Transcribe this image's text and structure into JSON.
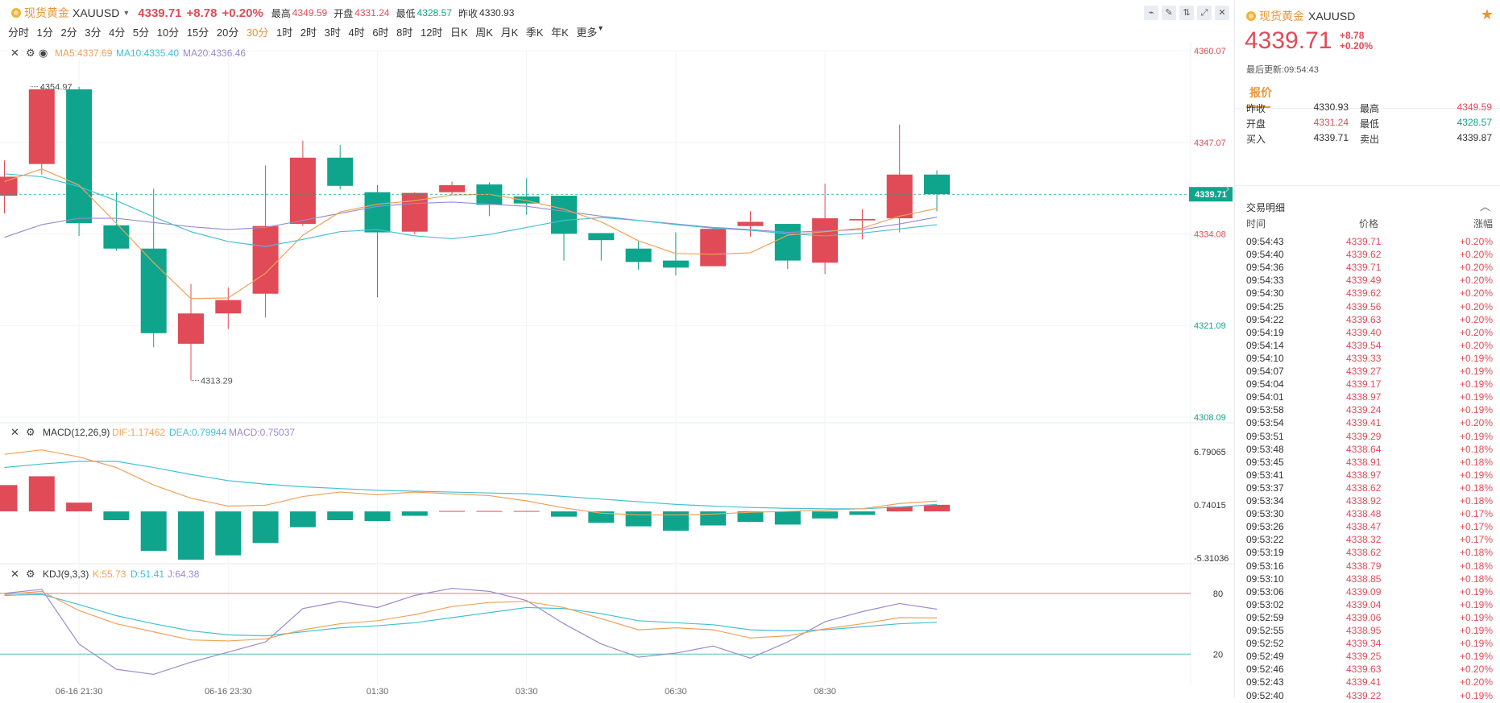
{
  "topbar": {
    "name": "现货黄金",
    "symbol": "XAUUSD",
    "price": "4339.71",
    "change": "+8.78",
    "change_pct": "+0.20%",
    "high_label": "最高",
    "high": "4349.59",
    "open_label": "开盘",
    "open": "4331.24",
    "low_label": "最低",
    "low": "4328.57",
    "prev_label": "昨收",
    "prev": "4330.93",
    "tools": [
      "indicator-icon",
      "draw-icon",
      "compare-icon",
      "fullscreen-icon",
      "close-icon"
    ]
  },
  "periods": [
    "分时",
    "1分",
    "2分",
    "3分",
    "4分",
    "5分",
    "10分",
    "15分",
    "20分",
    "30分",
    "1时",
    "2时",
    "3时",
    "4时",
    "6时",
    "8时",
    "12时",
    "日K",
    "周K",
    "月K",
    "季K",
    "年K",
    "更多"
  ],
  "active_period": "30分",
  "colors": {
    "up": "#e04b57",
    "down": "#0fa58d",
    "ma5": "#f0a259",
    "ma10": "#45c0d6",
    "ma20": "#9b8ad1",
    "accent": "#e8953a"
  },
  "chart_data": [
    {
      "type": "candlestick",
      "title": "",
      "ma_legend": {
        "ma5": "MA5:4337.69",
        "ma10": "MA10:4335.40",
        "ma20": "MA20:4336.46"
      },
      "y_ticks": [
        "4360.07",
        "4347.07",
        "4334.08",
        "4321.09",
        "4308.09"
      ],
      "y_tick_values": [
        4360.07,
        4347.07,
        4334.08,
        4321.09,
        4308.09
      ],
      "ylim": [
        4308.09,
        4360.07
      ],
      "current_price_label": "4339.71",
      "max_label": "4354.97",
      "min_label": "4313.29",
      "x_ticks": [
        "06-16 21:30",
        "06-16 23:30",
        "01:30",
        "03:30",
        "06:30",
        "08:30"
      ],
      "x_tick_index": [
        2,
        6,
        10,
        14,
        18,
        22
      ],
      "candles": [
        {
          "o": 4339.5,
          "c": 4342.2,
          "h": 4344.5,
          "l": 4337.0
        },
        {
          "o": 4344.0,
          "c": 4354.6,
          "h": 4354.97,
          "l": 4342.5
        },
        {
          "o": 4354.6,
          "c": 4335.6,
          "h": 4354.97,
          "l": 4333.8
        },
        {
          "o": 4335.3,
          "c": 4332.0,
          "h": 4340.0,
          "l": 4331.7
        },
        {
          "o": 4332.0,
          "c": 4320.0,
          "h": 4340.5,
          "l": 4318.0
        },
        {
          "o": 4318.5,
          "c": 4322.8,
          "h": 4327.0,
          "l": 4313.29
        },
        {
          "o": 4322.8,
          "c": 4324.7,
          "h": 4326.5,
          "l": 4320.6
        },
        {
          "o": 4325.6,
          "c": 4335.2,
          "h": 4343.8,
          "l": 4322.2
        },
        {
          "o": 4335.5,
          "c": 4344.9,
          "h": 4347.3,
          "l": 4335.2
        },
        {
          "o": 4344.9,
          "c": 4340.9,
          "h": 4346.7,
          "l": 4340.4
        },
        {
          "o": 4340.0,
          "c": 4334.3,
          "h": 4341.0,
          "l": 4325.1
        },
        {
          "o": 4334.4,
          "c": 4339.9,
          "h": 4340.0,
          "l": 4334.0
        },
        {
          "o": 4340.0,
          "c": 4341.0,
          "h": 4341.5,
          "l": 4339.7
        },
        {
          "o": 4341.1,
          "c": 4338.2,
          "h": 4341.4,
          "l": 4336.6
        },
        {
          "o": 4339.4,
          "c": 4338.4,
          "h": 4342.0,
          "l": 4336.8
        },
        {
          "o": 4339.5,
          "c": 4334.1,
          "h": 4339.5,
          "l": 4330.3
        },
        {
          "o": 4334.2,
          "c": 4333.2,
          "h": 4334.2,
          "l": 4330.3
        },
        {
          "o": 4332.0,
          "c": 4330.1,
          "h": 4333.0,
          "l": 4329.0
        },
        {
          "o": 4330.3,
          "c": 4329.3,
          "h": 4334.3,
          "l": 4328.2
        },
        {
          "o": 4329.5,
          "c": 4334.8,
          "h": 4335.0,
          "l": 4329.5
        },
        {
          "o": 4335.2,
          "c": 4335.8,
          "h": 4337.3,
          "l": 4333.7
        },
        {
          "o": 4335.5,
          "c": 4330.3,
          "h": 4335.5,
          "l": 4329.1
        },
        {
          "o": 4330.0,
          "c": 4336.3,
          "h": 4341.2,
          "l": 4328.4
        },
        {
          "o": 4336.0,
          "c": 4336.2,
          "h": 4337.6,
          "l": 4333.3
        },
        {
          "o": 4336.3,
          "c": 4342.5,
          "h": 4349.59,
          "l": 4334.3
        },
        {
          "o": 4342.5,
          "c": 4339.71,
          "h": 4343.1,
          "l": 4337.3
        }
      ],
      "ma5": [
        4341.5,
        4343.3,
        4341.0,
        4335.6,
        4330.0,
        4324.9,
        4325.0,
        4328.5,
        4333.9,
        4337.2,
        4338.3,
        4338.8,
        4339.6,
        4339.7,
        4338.8,
        4337.6,
        4335.8,
        4333.1,
        4331.3,
        4331.2,
        4331.4,
        4333.9,
        4334.4,
        4334.9,
        4336.6,
        4337.69
      ],
      "ma10": [
        4342.6,
        4342.2,
        4340.8,
        4338.8,
        4336.5,
        4334.4,
        4333.0,
        4332.3,
        4333.3,
        4334.4,
        4334.7,
        4333.8,
        4333.4,
        4334.0,
        4335.0,
        4336.0,
        4336.4,
        4336.0,
        4335.4,
        4334.9,
        4334.6,
        4334.1,
        4333.8,
        4334.2,
        4334.8,
        4335.4
      ],
      "ma20": [
        4333.6,
        4335.4,
        4336.3,
        4336.3,
        4335.7,
        4335.1,
        4334.7,
        4335.0,
        4336.0,
        4337.0,
        4338.0,
        4338.4,
        4338.6,
        4338.3,
        4338.0,
        4337.3,
        4336.6,
        4336.0,
        4335.5,
        4335.0,
        4334.7,
        4334.3,
        4334.5,
        4334.7,
        4335.5,
        4336.46
      ]
    },
    {
      "type": "macd",
      "legend": {
        "title": "MACD(12,26,9)",
        "dif": "DIF:1.17462",
        "dea": "DEA:0.79944",
        "macd": "MACD:0.75037"
      },
      "y_ticks": [
        "6.79065",
        "0.74015",
        "-5.31036"
      ],
      "y_tick_values": [
        6.79065,
        0.74015,
        -5.31036
      ],
      "ylim": [
        -5.31036,
        6.79065
      ],
      "hist": [
        3.0,
        4.0,
        1.0,
        -1.0,
        -4.5,
        -5.5,
        -5.0,
        -3.6,
        -1.8,
        -1.0,
        -1.1,
        -0.5,
        0.05,
        0.05,
        0.05,
        -0.6,
        -1.3,
        -1.7,
        -2.2,
        -1.6,
        -1.2,
        -1.5,
        -0.8,
        -0.4,
        0.55,
        0.75
      ],
      "dif": [
        6.5,
        7.0,
        6.2,
        5.0,
        3.0,
        1.5,
        0.6,
        0.7,
        1.7,
        2.2,
        1.9,
        2.2,
        2.0,
        1.8,
        1.2,
        0.4,
        -0.2,
        -0.4,
        -0.4,
        -0.3,
        -0.1,
        0.0,
        0.15,
        0.3,
        0.9,
        1.17462
      ],
      "dea": [
        5.0,
        5.4,
        5.7,
        5.7,
        5.0,
        4.2,
        3.5,
        3.1,
        2.8,
        2.6,
        2.4,
        2.3,
        2.2,
        2.1,
        2.0,
        1.7,
        1.4,
        1.1,
        0.8,
        0.6,
        0.45,
        0.35,
        0.3,
        0.3,
        0.5,
        0.79944
      ]
    },
    {
      "type": "kdj",
      "legend": {
        "title": "KDJ(9,3,3)",
        "k": "K:55.73",
        "d": "D:51.41",
        "j": "J:64.38"
      },
      "y_ticks": [
        "80",
        "20"
      ],
      "y_tick_values": [
        80,
        20
      ],
      "ylim": [
        -10,
        95
      ],
      "k": [
        79,
        82,
        63,
        50,
        42,
        34,
        33,
        35,
        44,
        50,
        53,
        59,
        67,
        71,
        72,
        66,
        55,
        44,
        46,
        44,
        36,
        38,
        45,
        50,
        56,
        55.73
      ],
      "d": [
        78,
        79,
        69,
        58,
        50,
        43,
        39,
        38,
        42,
        46,
        48,
        51,
        56,
        61,
        66,
        65,
        60,
        53,
        51,
        49,
        44,
        43,
        44,
        47,
        50,
        51.41
      ],
      "j": [
        80,
        84,
        30,
        5,
        0,
        12,
        22,
        32,
        65,
        72,
        66,
        78,
        85,
        82,
        73,
        50,
        30,
        17,
        21,
        28,
        16,
        32,
        52,
        62,
        70,
        64.38
      ]
    }
  ],
  "right_panel": {
    "name": "现货黄金",
    "symbol": "XAUUSD",
    "price": "4339.71",
    "change": "+8.78",
    "change_pct": "+0.20%",
    "last_update": "最后更新:09:54:43",
    "tab_label": "报价",
    "quote": [
      [
        {
          "label": "昨收",
          "value": "4330.93",
          "cls": ""
        },
        {
          "label": "最高",
          "value": "4349.59",
          "cls": "up"
        }
      ],
      [
        {
          "label": "开盘",
          "value": "4331.24",
          "cls": "up"
        },
        {
          "label": "最低",
          "value": "4328.57",
          "cls": "down"
        }
      ],
      [
        {
          "label": "买入",
          "value": "4339.71",
          "cls": ""
        },
        {
          "label": "卖出",
          "value": "4339.87",
          "cls": ""
        }
      ]
    ],
    "trades_title": "交易明细",
    "trades_header": [
      "时间",
      "价格",
      "涨幅"
    ],
    "trades": [
      [
        "09:54:43",
        "4339.71",
        "+0.20%"
      ],
      [
        "09:54:40",
        "4339.62",
        "+0.20%"
      ],
      [
        "09:54:36",
        "4339.71",
        "+0.20%"
      ],
      [
        "09:54:33",
        "4339.49",
        "+0.20%"
      ],
      [
        "09:54:30",
        "4339.62",
        "+0.20%"
      ],
      [
        "09:54:25",
        "4339.56",
        "+0.20%"
      ],
      [
        "09:54:22",
        "4339.63",
        "+0.20%"
      ],
      [
        "09:54:19",
        "4339.40",
        "+0.20%"
      ],
      [
        "09:54:14",
        "4339.54",
        "+0.20%"
      ],
      [
        "09:54:10",
        "4339.33",
        "+0.19%"
      ],
      [
        "09:54:07",
        "4339.27",
        "+0.19%"
      ],
      [
        "09:54:04",
        "4339.17",
        "+0.19%"
      ],
      [
        "09:54:01",
        "4338.97",
        "+0.19%"
      ],
      [
        "09:53:58",
        "4339.24",
        "+0.19%"
      ],
      [
        "09:53:54",
        "4339.41",
        "+0.20%"
      ],
      [
        "09:53:51",
        "4339.29",
        "+0.19%"
      ],
      [
        "09:53:48",
        "4338.64",
        "+0.18%"
      ],
      [
        "09:53:45",
        "4338.91",
        "+0.18%"
      ],
      [
        "09:53:41",
        "4338.97",
        "+0.19%"
      ],
      [
        "09:53:37",
        "4338.62",
        "+0.18%"
      ],
      [
        "09:53:34",
        "4338.92",
        "+0.18%"
      ],
      [
        "09:53:30",
        "4338.48",
        "+0.17%"
      ],
      [
        "09:53:26",
        "4338.47",
        "+0.17%"
      ],
      [
        "09:53:22",
        "4338.32",
        "+0.17%"
      ],
      [
        "09:53:19",
        "4338.62",
        "+0.18%"
      ],
      [
        "09:53:16",
        "4338.79",
        "+0.18%"
      ],
      [
        "09:53:10",
        "4338.85",
        "+0.18%"
      ],
      [
        "09:53:06",
        "4339.09",
        "+0.19%"
      ],
      [
        "09:53:02",
        "4339.04",
        "+0.19%"
      ],
      [
        "09:52:59",
        "4339.06",
        "+0.19%"
      ],
      [
        "09:52:55",
        "4338.95",
        "+0.19%"
      ],
      [
        "09:52:52",
        "4339.34",
        "+0.19%"
      ],
      [
        "09:52:49",
        "4339.25",
        "+0.19%"
      ],
      [
        "09:52:46",
        "4339.63",
        "+0.20%"
      ],
      [
        "09:52:43",
        "4339.41",
        "+0.20%"
      ],
      [
        "09:52:40",
        "4339.22",
        "+0.19%"
      ]
    ]
  }
}
